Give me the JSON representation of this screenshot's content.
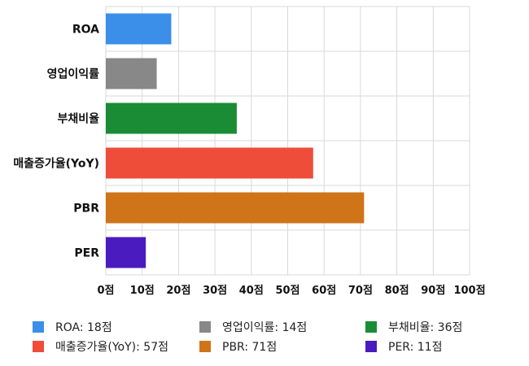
{
  "chart_data": {
    "type": "bar",
    "orientation": "horizontal",
    "categories": [
      "ROA",
      "영업이익률",
      "부채비율",
      "매출증가율(YoY)",
      "PBR",
      "PER"
    ],
    "values": [
      18,
      14,
      36,
      57,
      71,
      11
    ],
    "colors": [
      "#3b8fe8",
      "#888888",
      "#1a8c35",
      "#ee4d3a",
      "#cf7419",
      "#4a1bbf"
    ],
    "x_ticks": [
      "0점",
      "10점",
      "20점",
      "30점",
      "40점",
      "50점",
      "60점",
      "70점",
      "80점",
      "90점",
      "100점"
    ],
    "xlim": [
      0,
      100
    ],
    "grid": true,
    "legend": {
      "placement": "bottom",
      "items": [
        {
          "label": "ROA: 18점",
          "color": "#3b8fe8"
        },
        {
          "label": "영업이익률: 14점",
          "color": "#888888"
        },
        {
          "label": "부채비율: 36점",
          "color": "#1a8c35"
        },
        {
          "label": "매출증가율(YoY): 57점",
          "color": "#ee4d3a"
        },
        {
          "label": "PBR: 71점",
          "color": "#cf7419"
        },
        {
          "label": "PER: 11점",
          "color": "#4a1bbf"
        }
      ]
    }
  }
}
